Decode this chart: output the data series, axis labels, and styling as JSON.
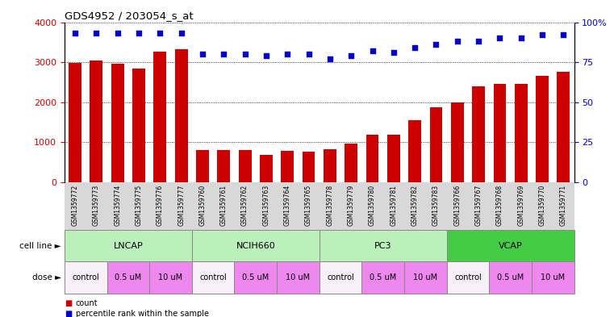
{
  "title": "GDS4952 / 203054_s_at",
  "samples": [
    "GSM1359772",
    "GSM1359773",
    "GSM1359774",
    "GSM1359775",
    "GSM1359776",
    "GSM1359777",
    "GSM1359760",
    "GSM1359761",
    "GSM1359762",
    "GSM1359763",
    "GSM1359764",
    "GSM1359765",
    "GSM1359778",
    "GSM1359779",
    "GSM1359780",
    "GSM1359781",
    "GSM1359782",
    "GSM1359783",
    "GSM1359766",
    "GSM1359767",
    "GSM1359768",
    "GSM1359769",
    "GSM1359770",
    "GSM1359771"
  ],
  "counts": [
    2980,
    3050,
    2960,
    2840,
    3270,
    3330,
    800,
    800,
    800,
    690,
    780,
    760,
    830,
    970,
    1190,
    1185,
    1560,
    1870,
    2000,
    2400,
    2460,
    2450,
    2650,
    2760
  ],
  "percentile_ranks": [
    93,
    93,
    93,
    93,
    93,
    93,
    80,
    80,
    80,
    79,
    80,
    80,
    77,
    79,
    82,
    81,
    84,
    86,
    88,
    88,
    90,
    90,
    92,
    92
  ],
  "bar_color": "#cc0000",
  "dot_color": "#0000cc",
  "cell_lines": [
    {
      "label": "LNCAP",
      "start": 0,
      "end": 6,
      "color": "#bbf0bb"
    },
    {
      "label": "NCIH660",
      "start": 6,
      "end": 12,
      "color": "#bbf0bb"
    },
    {
      "label": "PC3",
      "start": 12,
      "end": 18,
      "color": "#bbf0bb"
    },
    {
      "label": "VCAP",
      "start": 18,
      "end": 24,
      "color": "#44cc44"
    }
  ],
  "dose_groups": [
    {
      "label": "control",
      "start": 0,
      "end": 2,
      "color": "#f8f0f8"
    },
    {
      "label": "0.5 uM",
      "start": 2,
      "end": 4,
      "color": "#ee88ee"
    },
    {
      "label": "10 uM",
      "start": 4,
      "end": 6,
      "color": "#ee88ee"
    },
    {
      "label": "control",
      "start": 6,
      "end": 8,
      "color": "#f8f0f8"
    },
    {
      "label": "0.5 uM",
      "start": 8,
      "end": 10,
      "color": "#ee88ee"
    },
    {
      "label": "10 uM",
      "start": 10,
      "end": 12,
      "color": "#ee88ee"
    },
    {
      "label": "control",
      "start": 12,
      "end": 14,
      "color": "#f8f0f8"
    },
    {
      "label": "0.5 uM",
      "start": 14,
      "end": 16,
      "color": "#ee88ee"
    },
    {
      "label": "10 uM",
      "start": 16,
      "end": 18,
      "color": "#ee88ee"
    },
    {
      "label": "control",
      "start": 18,
      "end": 20,
      "color": "#f8f0f8"
    },
    {
      "label": "0.5 uM",
      "start": 20,
      "end": 22,
      "color": "#ee88ee"
    },
    {
      "label": "10 uM",
      "start": 22,
      "end": 24,
      "color": "#ee88ee"
    }
  ],
  "ylim_left": [
    0,
    4000
  ],
  "ylim_right": [
    0,
    100
  ],
  "yticks_left": [
    0,
    1000,
    2000,
    3000,
    4000
  ],
  "yticks_right": [
    0,
    25,
    50,
    75,
    100
  ],
  "left_tick_color": "#cc0000",
  "right_tick_color": "#0000cc",
  "grid_color": "#000000",
  "label_bg_color": "#d8d8d8",
  "legend_items": [
    {
      "marker": "s",
      "color": "#cc0000",
      "label": "count"
    },
    {
      "marker": "s",
      "color": "#0000cc",
      "label": "percentile rank within the sample"
    }
  ]
}
